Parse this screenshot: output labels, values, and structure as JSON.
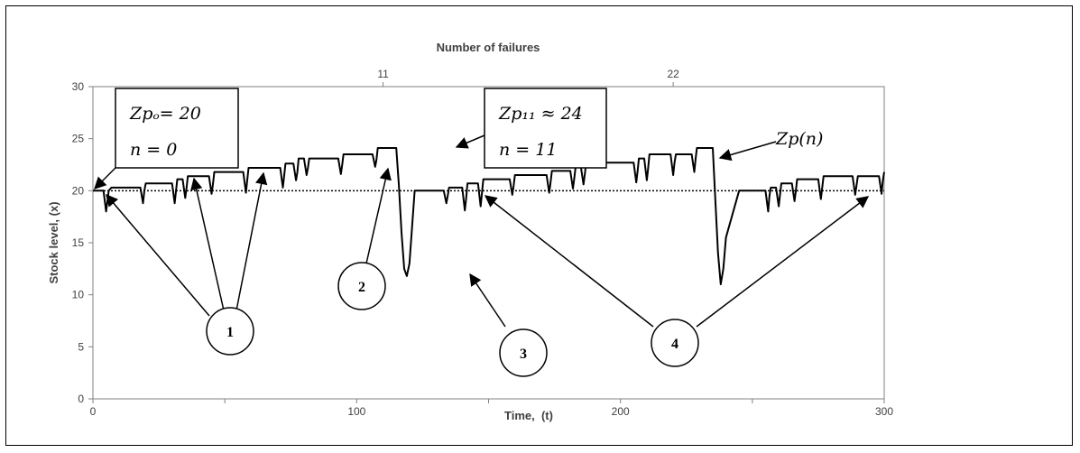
{
  "chart_data": {
    "type": "line",
    "title": "",
    "xlabel": "Time,  (t)",
    "ylabel": "Stock level, (x)",
    "top_xlabel": "Number of failures",
    "xlim": [
      0,
      300
    ],
    "ylim": [
      0,
      30
    ],
    "xticks": [
      "0",
      "100",
      "200",
      "300"
    ],
    "yticks": [
      "0",
      "5",
      "10",
      "15",
      "20",
      "25",
      "30"
    ],
    "top_xticks": [
      {
        "label": "11",
        "x": 110
      },
      {
        "label": "22",
        "x": 220
      }
    ],
    "reference_line": {
      "y": 20,
      "style": "dotted"
    },
    "grid": false,
    "series": [
      {
        "x": [
          0,
          4,
          5,
          6,
          7,
          18,
          19,
          19.5,
          20,
          30,
          31,
          31.5,
          32,
          34,
          35,
          35.5,
          36,
          44,
          45,
          45.5,
          46,
          57,
          58,
          58.5,
          59,
          71,
          72,
          72.5,
          73,
          76,
          77,
          77.5,
          78,
          80,
          81,
          81.5,
          82,
          93,
          94,
          94.5,
          95,
          106,
          107,
          107.5,
          108,
          115,
          116,
          117,
          118,
          119,
          120,
          122,
          133,
          134,
          134.5,
          135,
          140,
          141,
          141.5,
          142,
          146,
          147,
          147.5,
          148,
          158,
          159,
          159.5,
          160,
          172,
          173,
          173.5,
          174,
          181,
          182,
          182.5,
          183,
          185,
          186,
          186.5,
          187,
          205,
          206,
          206.5,
          207,
          209,
          210,
          210.5,
          211,
          219,
          220,
          220.5,
          221,
          227,
          228,
          228.5,
          229,
          235,
          236,
          237,
          238,
          239,
          240,
          245,
          255,
          256,
          256.5,
          257,
          259,
          260,
          260.5,
          261,
          265,
          266,
          266.5,
          267,
          275,
          276,
          276.5,
          277,
          288,
          289,
          289.5,
          290,
          298,
          299,
          299.5,
          300
        ],
        "y": [
          20,
          20,
          18,
          20,
          20.3,
          20.3,
          18.8,
          20,
          20.7,
          20.7,
          18.8,
          20,
          21.1,
          21.1,
          19.3,
          20.3,
          21.4,
          21.4,
          19.7,
          20.6,
          21.8,
          21.8,
          19.8,
          21,
          22.2,
          22.2,
          20.3,
          21.4,
          22.6,
          22.6,
          21,
          21.8,
          23.1,
          23.1,
          21.5,
          22.2,
          23.1,
          23.1,
          21.6,
          22.5,
          23.5,
          23.5,
          22.3,
          23,
          24.1,
          24.1,
          20.5,
          16,
          12.5,
          11.8,
          13,
          20,
          20,
          18.8,
          19.5,
          20.3,
          20.3,
          18.1,
          19.3,
          20.7,
          20.7,
          18.5,
          19.8,
          21.1,
          21.1,
          19.6,
          20.5,
          21.5,
          21.5,
          19.8,
          20.8,
          21.9,
          21.9,
          20.2,
          21.2,
          22.3,
          22.3,
          20.6,
          21.6,
          22.7,
          22.7,
          20.8,
          21.9,
          23.1,
          23.1,
          21,
          22.2,
          23.5,
          23.5,
          21.5,
          22.7,
          23.5,
          23.5,
          21.8,
          23.1,
          24.1,
          24.1,
          19,
          14,
          11,
          12.5,
          15.5,
          20,
          20,
          18,
          19.5,
          20.3,
          20.3,
          18.5,
          19.6,
          20.7,
          20.7,
          19,
          20,
          21.1,
          21.1,
          19.2,
          20.3,
          21.4,
          21.4,
          19.6,
          20.5,
          21.4,
          21.4,
          19.7,
          21,
          21.8
        ]
      }
    ],
    "annotations": {
      "box1": {
        "line1": "Zpₒ= 20",
        "line2": "n = 0"
      },
      "box2": {
        "line1": "Zp₁₁ ≈ 24",
        "line2": "n = 11"
      },
      "series_label": "Zp(n)",
      "circles": [
        "1",
        "2",
        "3",
        "4"
      ]
    }
  }
}
